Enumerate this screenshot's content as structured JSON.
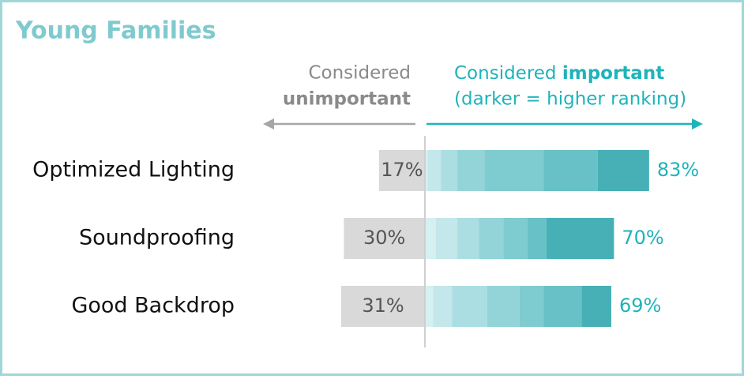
{
  "chart_data": {
    "type": "diverging_bar",
    "title": "Young Families",
    "legend": {
      "left_line1": "Considered",
      "left_line2": "unimportant",
      "right_line1_a": "Considered ",
      "right_line1_b": "important",
      "right_line2": "(darker = higher ranking)"
    },
    "categories": [
      "Optimized Lighting",
      "Soundproofing",
      "Good Backdrop"
    ],
    "unimportant": {
      "color": "#d9d9d9",
      "values": [
        17,
        30,
        31
      ],
      "value_labels": [
        "17%",
        "30%",
        "31%"
      ]
    },
    "important": {
      "values": [
        83,
        70,
        69
      ],
      "value_labels": [
        "83%",
        "70%",
        "69%"
      ]
    },
    "shade_colors": [
      "#d6eff1",
      "#c3e7ea",
      "#abdee2",
      "#93d4d8",
      "#7ecbd0",
      "#68c1c6",
      "#46b0b6"
    ],
    "segments": [
      [
        1,
        5,
        6,
        10,
        22,
        20,
        19
      ],
      [
        4,
        8,
        8,
        9,
        9,
        7,
        25
      ],
      [
        3,
        7,
        13,
        12,
        9,
        14,
        11
      ]
    ]
  }
}
